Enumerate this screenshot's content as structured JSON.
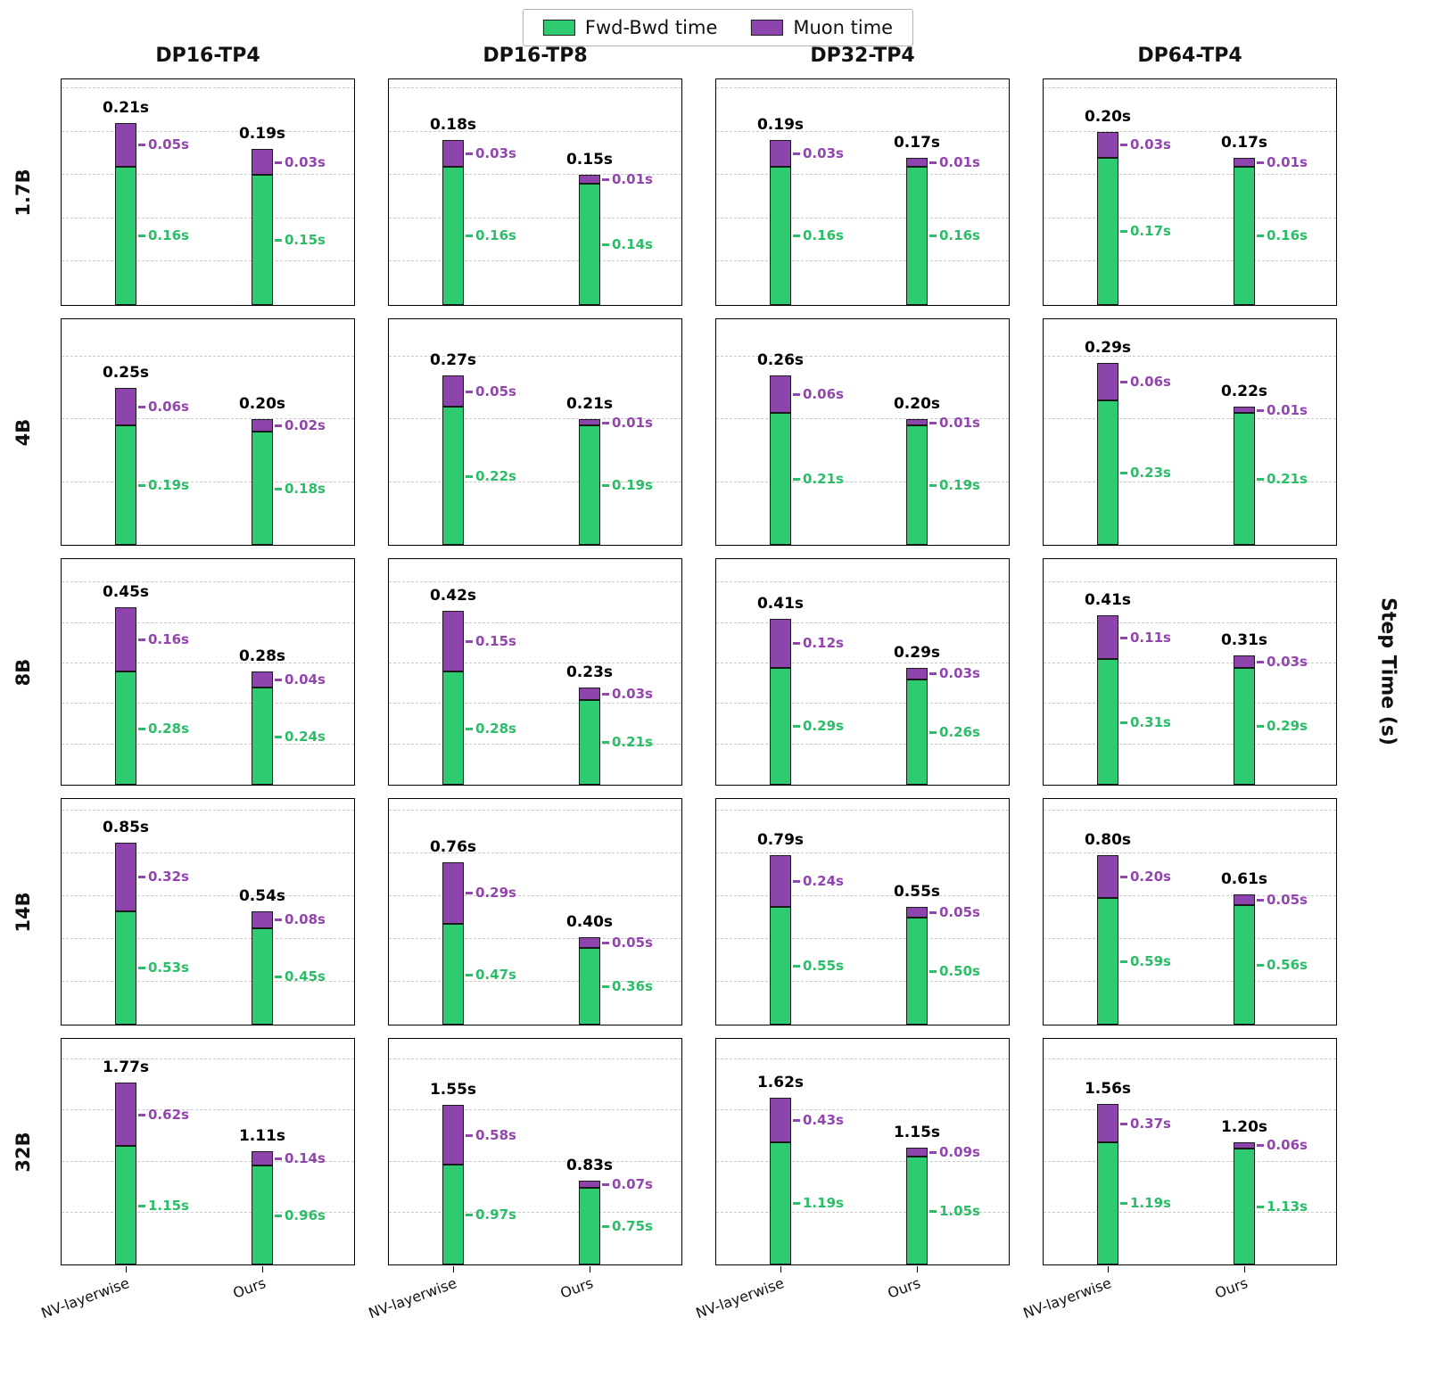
{
  "figure": {
    "ylabel": "Step Time (s)",
    "colors": {
      "fwd_fill": "#2ecb70",
      "muon_fill": "#8e44ad",
      "fwd_text": "#2bbd67",
      "muon_text": "#9245ae",
      "grid": "#c9c9c9",
      "axis": "#000000",
      "total_text": "#000000"
    }
  },
  "chart_data": {
    "type": "bar",
    "stacked": true,
    "unit": "s",
    "grid": "dashed-horizontal",
    "legend_position": "top-center",
    "legend": [
      {
        "label": "Fwd-Bwd time",
        "color": "#2ecb70"
      },
      {
        "label": "Muon time",
        "color": "#8e44ad"
      }
    ],
    "columns": [
      "DP16-TP4",
      "DP16-TP8",
      "DP32-TP4",
      "DP64-TP4"
    ],
    "rows": [
      "1.7B",
      "4B",
      "8B",
      "14B",
      "32B"
    ],
    "categories": [
      "NV-layerwise",
      "Ours"
    ],
    "series_names": [
      "Fwd-Bwd time",
      "Muon time"
    ],
    "ylabel": "Step Time (s)",
    "cells": [
      [
        {
          "bars": [
            {
              "total": 0.21,
              "fwd": 0.16,
              "muon": 0.05
            },
            {
              "total": 0.19,
              "fwd": 0.15,
              "muon": 0.03
            }
          ]
        },
        {
          "bars": [
            {
              "total": 0.18,
              "fwd": 0.16,
              "muon": 0.03
            },
            {
              "total": 0.15,
              "fwd": 0.14,
              "muon": 0.01
            }
          ]
        },
        {
          "bars": [
            {
              "total": 0.19,
              "fwd": 0.16,
              "muon": 0.03
            },
            {
              "total": 0.17,
              "fwd": 0.16,
              "muon": 0.01
            }
          ]
        },
        {
          "bars": [
            {
              "total": 0.2,
              "fwd": 0.17,
              "muon": 0.03
            },
            {
              "total": 0.17,
              "fwd": 0.16,
              "muon": 0.01
            }
          ]
        }
      ],
      [
        {
          "bars": [
            {
              "total": 0.25,
              "fwd": 0.19,
              "muon": 0.06
            },
            {
              "total": 0.2,
              "fwd": 0.18,
              "muon": 0.02
            }
          ]
        },
        {
          "bars": [
            {
              "total": 0.27,
              "fwd": 0.22,
              "muon": 0.05
            },
            {
              "total": 0.21,
              "fwd": 0.19,
              "muon": 0.01
            }
          ]
        },
        {
          "bars": [
            {
              "total": 0.26,
              "fwd": 0.21,
              "muon": 0.06
            },
            {
              "total": 0.2,
              "fwd": 0.19,
              "muon": 0.01
            }
          ]
        },
        {
          "bars": [
            {
              "total": 0.29,
              "fwd": 0.23,
              "muon": 0.06
            },
            {
              "total": 0.22,
              "fwd": 0.21,
              "muon": 0.01
            }
          ]
        }
      ],
      [
        {
          "bars": [
            {
              "total": 0.45,
              "fwd": 0.28,
              "muon": 0.16
            },
            {
              "total": 0.28,
              "fwd": 0.24,
              "muon": 0.04
            }
          ]
        },
        {
          "bars": [
            {
              "total": 0.42,
              "fwd": 0.28,
              "muon": 0.15
            },
            {
              "total": 0.23,
              "fwd": 0.21,
              "muon": 0.03
            }
          ]
        },
        {
          "bars": [
            {
              "total": 0.41,
              "fwd": 0.29,
              "muon": 0.12
            },
            {
              "total": 0.29,
              "fwd": 0.26,
              "muon": 0.03
            }
          ]
        },
        {
          "bars": [
            {
              "total": 0.41,
              "fwd": 0.31,
              "muon": 0.11
            },
            {
              "total": 0.31,
              "fwd": 0.29,
              "muon": 0.03
            }
          ]
        }
      ],
      [
        {
          "bars": [
            {
              "total": 0.85,
              "fwd": 0.53,
              "muon": 0.32
            },
            {
              "total": 0.54,
              "fwd": 0.45,
              "muon": 0.08
            }
          ]
        },
        {
          "bars": [
            {
              "total": 0.76,
              "fwd": 0.47,
              "muon": 0.29
            },
            {
              "total": 0.4,
              "fwd": 0.36,
              "muon": 0.05
            }
          ]
        },
        {
          "bars": [
            {
              "total": 0.79,
              "fwd": 0.55,
              "muon": 0.24
            },
            {
              "total": 0.55,
              "fwd": 0.5,
              "muon": 0.05
            }
          ]
        },
        {
          "bars": [
            {
              "total": 0.8,
              "fwd": 0.59,
              "muon": 0.2
            },
            {
              "total": 0.61,
              "fwd": 0.56,
              "muon": 0.05
            }
          ]
        }
      ],
      [
        {
          "bars": [
            {
              "total": 1.77,
              "fwd": 1.15,
              "muon": 0.62
            },
            {
              "total": 1.11,
              "fwd": 0.96,
              "muon": 0.14
            }
          ]
        },
        {
          "bars": [
            {
              "total": 1.55,
              "fwd": 0.97,
              "muon": 0.58
            },
            {
              "total": 0.83,
              "fwd": 0.75,
              "muon": 0.07
            }
          ]
        },
        {
          "bars": [
            {
              "total": 1.62,
              "fwd": 1.19,
              "muon": 0.43
            },
            {
              "total": 1.15,
              "fwd": 1.05,
              "muon": 0.09
            }
          ]
        },
        {
          "bars": [
            {
              "total": 1.56,
              "fwd": 1.19,
              "muon": 0.37
            },
            {
              "total": 1.2,
              "fwd": 1.13,
              "muon": 0.06
            }
          ]
        }
      ]
    ]
  }
}
